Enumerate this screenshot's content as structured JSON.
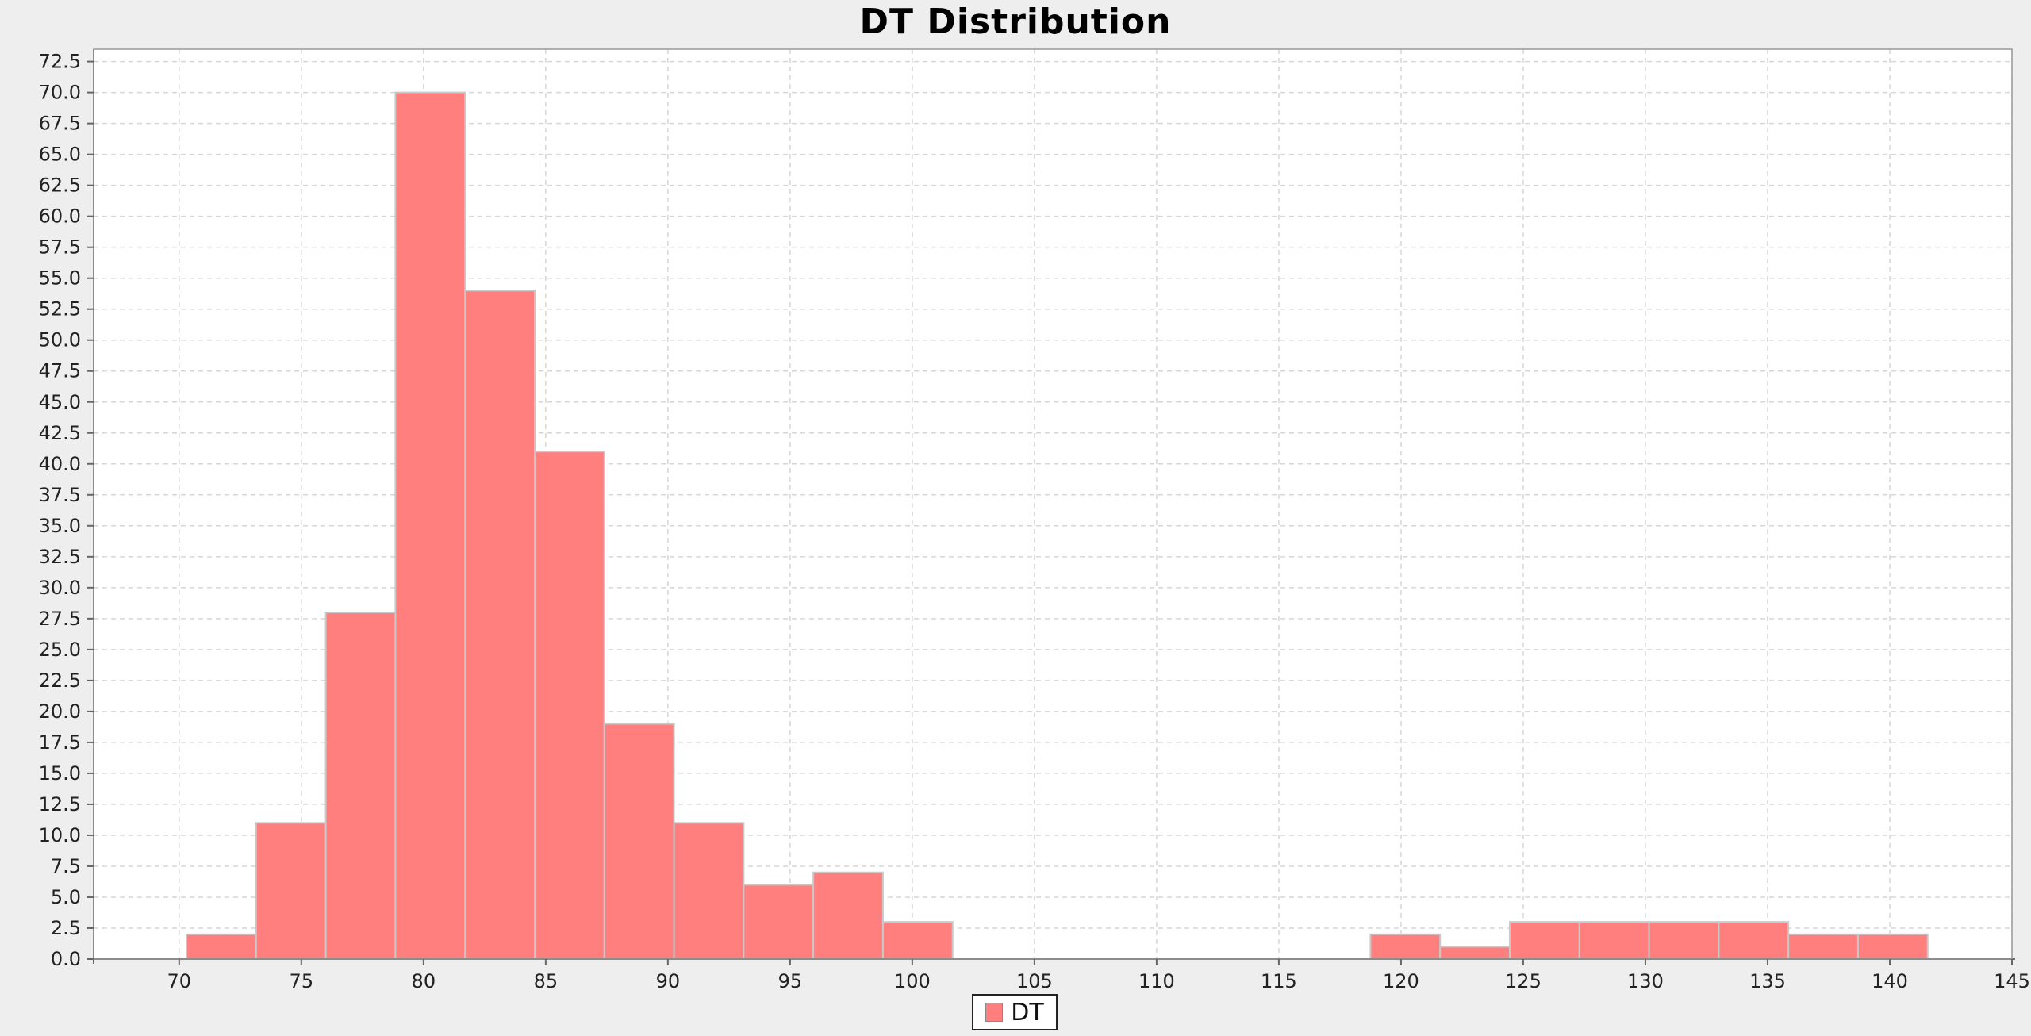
{
  "chart_data": {
    "type": "bar",
    "title": "DT Distribution",
    "xlabel": "",
    "ylabel": "",
    "xlim": [
      66.5,
      145
    ],
    "ylim": [
      0,
      73.5
    ],
    "x_ticks": [
      70,
      75,
      80,
      85,
      90,
      95,
      100,
      105,
      110,
      115,
      120,
      125,
      130,
      135,
      140,
      145
    ],
    "y_ticks": [
      "0.0",
      "2.5",
      "5.0",
      "7.5",
      "10.0",
      "12.5",
      "15.0",
      "17.5",
      "20.0",
      "22.5",
      "25.0",
      "27.5",
      "30.0",
      "32.5",
      "35.0",
      "37.5",
      "40.0",
      "42.5",
      "45.0",
      "47.5",
      "50.0",
      "52.5",
      "55.0",
      "57.5",
      "60.0",
      "62.5",
      "65.0",
      "67.5",
      "70.0",
      "72.5"
    ],
    "grid": true,
    "legend_position": "bottom-center",
    "series": [
      {
        "name": "DT",
        "color": "#ff7f7f",
        "bins": [
          {
            "x0": 70.3,
            "x1": 73.15,
            "count": 2
          },
          {
            "x0": 73.15,
            "x1": 76.0,
            "count": 11
          },
          {
            "x0": 76.0,
            "x1": 78.85,
            "count": 28
          },
          {
            "x0": 78.85,
            "x1": 81.7,
            "count": 70
          },
          {
            "x0": 81.7,
            "x1": 84.55,
            "count": 54
          },
          {
            "x0": 84.55,
            "x1": 87.4,
            "count": 41
          },
          {
            "x0": 87.4,
            "x1": 90.25,
            "count": 19
          },
          {
            "x0": 90.25,
            "x1": 93.1,
            "count": 11
          },
          {
            "x0": 93.1,
            "x1": 95.95,
            "count": 6
          },
          {
            "x0": 95.95,
            "x1": 98.8,
            "count": 7
          },
          {
            "x0": 98.8,
            "x1": 101.65,
            "count": 3
          },
          {
            "x0": 118.75,
            "x1": 121.6,
            "count": 2
          },
          {
            "x0": 121.6,
            "x1": 124.45,
            "count": 1
          },
          {
            "x0": 124.45,
            "x1": 127.3,
            "count": 3
          },
          {
            "x0": 127.3,
            "x1": 130.15,
            "count": 3
          },
          {
            "x0": 130.15,
            "x1": 133.0,
            "count": 3
          },
          {
            "x0": 133.0,
            "x1": 135.85,
            "count": 3
          },
          {
            "x0": 135.85,
            "x1": 138.7,
            "count": 2
          },
          {
            "x0": 138.7,
            "x1": 141.55,
            "count": 2
          }
        ]
      }
    ]
  }
}
